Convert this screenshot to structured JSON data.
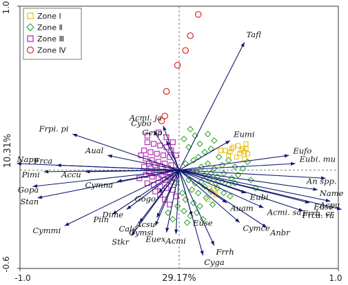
{
  "chart_data": {
    "type": "scatter",
    "title": "",
    "xlabel": "29.17%",
    "ylabel": "10.31%",
    "xlim": [
      -1.0,
      1.0
    ],
    "ylim": [
      -0.6,
      1.0
    ],
    "x_ticks": [
      "-1.0",
      "1.0"
    ],
    "y_ticks": [
      "1.0",
      "-0.6"
    ],
    "origin_lines": "dashed",
    "legend_position": "top-left",
    "colors": {
      "vectors": "#101a6e",
      "zone_I": "#e8c21c",
      "zone_II": "#2ea82e",
      "zone_III": "#b01cb0",
      "zone_IV": "#e02020"
    },
    "legend": [
      {
        "label": "Zone Ⅰ",
        "marker": "square",
        "color": "#e8c21c"
      },
      {
        "label": "Zone Ⅱ",
        "marker": "diamond",
        "color": "#2ea82e"
      },
      {
        "label": "Zone Ⅲ",
        "marker": "square",
        "color": "#b01cb0"
      },
      {
        "label": "Zone Ⅳ",
        "marker": "circle",
        "color": "#e02020"
      }
    ],
    "vectors": [
      {
        "name": "Tafl",
        "x": 0.41,
        "y": 0.78
      },
      {
        "name": "Acmi. ja",
        "x": -0.1,
        "y": 0.27
      },
      {
        "name": "Eumi",
        "x": 0.32,
        "y": 0.18
      },
      {
        "name": "Cybo",
        "x": -0.16,
        "y": 0.24
      },
      {
        "name": "Gesp.",
        "x": -0.08,
        "y": 0.18
      },
      {
        "name": "Frpi. pi",
        "x": -0.67,
        "y": 0.22
      },
      {
        "name": "Aual",
        "x": -0.45,
        "y": 0.09
      },
      {
        "name": "Napu",
        "x": -1.02,
        "y": 0.04
      },
      {
        "name": "Frca",
        "x": -0.77,
        "y": 0.03
      },
      {
        "name": "Pimi",
        "x": -0.85,
        "y": -0.01
      },
      {
        "name": "Accu",
        "x": -0.59,
        "y": -0.01
      },
      {
        "name": "Cymna",
        "x": -0.39,
        "y": -0.07
      },
      {
        "name": "Gopa",
        "x": -0.92,
        "y": -0.1
      },
      {
        "name": "Stan",
        "x": -0.89,
        "y": -0.17
      },
      {
        "name": "Gogo",
        "x": -0.13,
        "y": -0.14
      },
      {
        "name": "Dime",
        "x": -0.33,
        "y": -0.24
      },
      {
        "name": "Piin",
        "x": -0.42,
        "y": -0.27
      },
      {
        "name": "Cymmi",
        "x": -0.72,
        "y": -0.34
      },
      {
        "name": "Cale",
        "x": -0.25,
        "y": -0.32
      },
      {
        "name": "Acsu",
        "x": -0.14,
        "y": -0.29
      },
      {
        "name": "Cymsi",
        "x": -0.15,
        "y": -0.34
      },
      {
        "name": "Stkr",
        "x": -0.3,
        "y": -0.4
      },
      {
        "name": "Euex",
        "x": -0.08,
        "y": -0.38
      },
      {
        "name": "Acmi",
        "x": -0.02,
        "y": -0.39
      },
      {
        "name": "Cyga",
        "x": 0.15,
        "y": -0.52
      },
      {
        "name": "Frrh",
        "x": 0.22,
        "y": -0.46
      },
      {
        "name": "Euse",
        "x": 0.08,
        "y": -0.28
      },
      {
        "name": "Cymce",
        "x": 0.38,
        "y": -0.32
      },
      {
        "name": "Auam",
        "x": 0.3,
        "y": -0.2
      },
      {
        "name": "Eubi",
        "x": 0.42,
        "y": -0.14
      },
      {
        "name": "Acmi. sa",
        "x": 0.53,
        "y": -0.23
      },
      {
        "name": "Anbr",
        "x": 0.55,
        "y": -0.35
      },
      {
        "name": "Frca. ra",
        "x": 0.78,
        "y": -0.25
      },
      {
        "name": "Euso",
        "x": 0.82,
        "y": -0.2
      },
      {
        "name": "Name",
        "x": 0.87,
        "y": -0.12
      },
      {
        "name": "Frrh. cr",
        "x": 1.02,
        "y": -0.24
      },
      {
        "name": "Acpu",
        "x": 0.95,
        "y": -0.19
      },
      {
        "name": "An spp.",
        "x": 0.92,
        "y": -0.05
      },
      {
        "name": "Eubi. mu",
        "x": 0.73,
        "y": 0.04
      },
      {
        "name": "Eufo",
        "x": 0.69,
        "y": 0.09
      }
    ],
    "zone_I": [
      [
        0.29,
        0.12
      ],
      [
        0.32,
        0.11
      ],
      [
        0.34,
        0.14
      ],
      [
        0.37,
        0.15
      ],
      [
        0.4,
        0.13
      ],
      [
        0.41,
        0.11
      ],
      [
        0.43,
        0.1
      ],
      [
        0.42,
        0.16
      ],
      [
        0.38,
        0.1
      ],
      [
        0.31,
        0.09
      ],
      [
        0.36,
        0.08
      ],
      [
        0.41,
        0.07
      ],
      [
        0.26,
        0.12
      ],
      [
        0.33,
        0.13
      ],
      [
        0.39,
        0.12
      ],
      [
        0.42,
        0.13
      ],
      [
        0.19,
        -0.11
      ],
      [
        0.23,
        -0.15
      ],
      [
        0.18,
        -0.18
      ],
      [
        0.22,
        -0.12
      ]
    ],
    "zone_II": [
      [
        0.12,
        0.08
      ],
      [
        0.16,
        0.11
      ],
      [
        0.2,
        0.13
      ],
      [
        0.25,
        0.08
      ],
      [
        0.09,
        0.06
      ],
      [
        0.14,
        0.02
      ],
      [
        0.18,
        0.04
      ],
      [
        0.22,
        0.01
      ],
      [
        0.27,
        0.03
      ],
      [
        0.31,
        0.06
      ],
      [
        0.35,
        0.02
      ],
      [
        0.4,
        0.01
      ],
      [
        0.43,
        0.05
      ],
      [
        0.11,
        -0.01
      ],
      [
        0.16,
        -0.03
      ],
      [
        0.2,
        -0.02
      ],
      [
        0.24,
        -0.04
      ],
      [
        0.28,
        -0.02
      ],
      [
        0.33,
        -0.05
      ],
      [
        0.37,
        -0.03
      ],
      [
        0.06,
        -0.06
      ],
      [
        0.1,
        -0.08
      ],
      [
        0.14,
        -0.07
      ],
      [
        0.19,
        -0.06
      ],
      [
        0.23,
        -0.08
      ],
      [
        0.27,
        -0.07
      ],
      [
        0.31,
        -0.09
      ],
      [
        0.35,
        -0.08
      ],
      [
        0.08,
        -0.12
      ],
      [
        0.12,
        -0.14
      ],
      [
        0.16,
        -0.1
      ],
      [
        0.2,
        -0.13
      ],
      [
        0.24,
        -0.11
      ],
      [
        0.28,
        -0.14
      ],
      [
        0.32,
        -0.16
      ],
      [
        0.04,
        -0.18
      ],
      [
        0.09,
        -0.2
      ],
      [
        0.13,
        -0.22
      ],
      [
        0.17,
        -0.17
      ],
      [
        0.21,
        -0.21
      ],
      [
        0.03,
        -0.25
      ],
      [
        0.07,
        -0.28
      ],
      [
        0.11,
        -0.26
      ],
      [
        0.15,
        -0.3
      ],
      [
        0.05,
        -0.32
      ],
      [
        -0.04,
        -0.3
      ],
      [
        -0.07,
        -0.26
      ],
      [
        -0.01,
        -0.22
      ],
      [
        0.02,
        -0.14
      ],
      [
        -0.02,
        -0.08
      ],
      [
        0.07,
        0.25
      ],
      [
        0.1,
        0.21
      ],
      [
        0.03,
        0.19
      ],
      [
        0.13,
        0.16
      ],
      [
        0.18,
        0.22
      ],
      [
        0.22,
        0.18
      ],
      [
        0.06,
        0.14
      ],
      [
        0.04,
        0.04
      ],
      [
        0.45,
        -0.06
      ],
      [
        0.48,
        -0.11
      ]
    ],
    "zone_III": [
      [
        -0.2,
        0.17
      ],
      [
        -0.16,
        0.16
      ],
      [
        -0.12,
        0.15
      ],
      [
        -0.08,
        0.14
      ],
      [
        -0.05,
        0.12
      ],
      [
        -0.22,
        0.12
      ],
      [
        -0.18,
        0.11
      ],
      [
        -0.14,
        0.1
      ],
      [
        -0.1,
        0.09
      ],
      [
        -0.06,
        0.08
      ],
      [
        -0.21,
        0.07
      ],
      [
        -0.17,
        0.06
      ],
      [
        -0.13,
        0.05
      ],
      [
        -0.09,
        0.04
      ],
      [
        -0.05,
        0.03
      ],
      [
        -0.22,
        0.02
      ],
      [
        -0.18,
        0.01
      ],
      [
        -0.14,
        0.0
      ],
      [
        -0.1,
        -0.01
      ],
      [
        -0.06,
        -0.02
      ],
      [
        -0.21,
        -0.03
      ],
      [
        -0.17,
        -0.04
      ],
      [
        -0.13,
        -0.05
      ],
      [
        -0.09,
        -0.06
      ],
      [
        -0.05,
        -0.07
      ],
      [
        -0.2,
        -0.08
      ],
      [
        -0.16,
        -0.09
      ],
      [
        -0.12,
        -0.1
      ],
      [
        -0.08,
        -0.11
      ],
      [
        -0.04,
        -0.12
      ],
      [
        -0.19,
        0.04
      ],
      [
        -0.15,
        0.03
      ],
      [
        -0.11,
        0.02
      ],
      [
        -0.07,
        0.01
      ],
      [
        -0.03,
        0.0
      ],
      [
        -0.19,
        -0.01
      ],
      [
        -0.15,
        -0.02
      ],
      [
        -0.11,
        -0.03
      ],
      [
        -0.07,
        -0.04
      ],
      [
        -0.03,
        -0.05
      ],
      [
        -0.24,
        0.09
      ],
      [
        -0.25,
        -0.05
      ],
      [
        -0.2,
        0.21
      ],
      [
        -0.13,
        0.23
      ],
      [
        -0.08,
        0.2
      ],
      [
        -0.04,
        0.17
      ],
      [
        -0.02,
        0.09
      ],
      [
        -0.12,
        -0.15
      ],
      [
        -0.09,
        -0.18
      ],
      [
        -0.15,
        -0.13
      ],
      [
        -0.02,
        -0.16
      ],
      [
        -0.06,
        -0.21
      ]
    ],
    "zone_IV": [
      [
        0.12,
        0.95
      ],
      [
        0.07,
        0.82
      ],
      [
        0.04,
        0.73
      ],
      [
        -0.01,
        0.64
      ],
      [
        -0.08,
        0.48
      ],
      [
        -0.09,
        0.33
      ],
      [
        -0.11,
        0.3
      ]
    ]
  }
}
